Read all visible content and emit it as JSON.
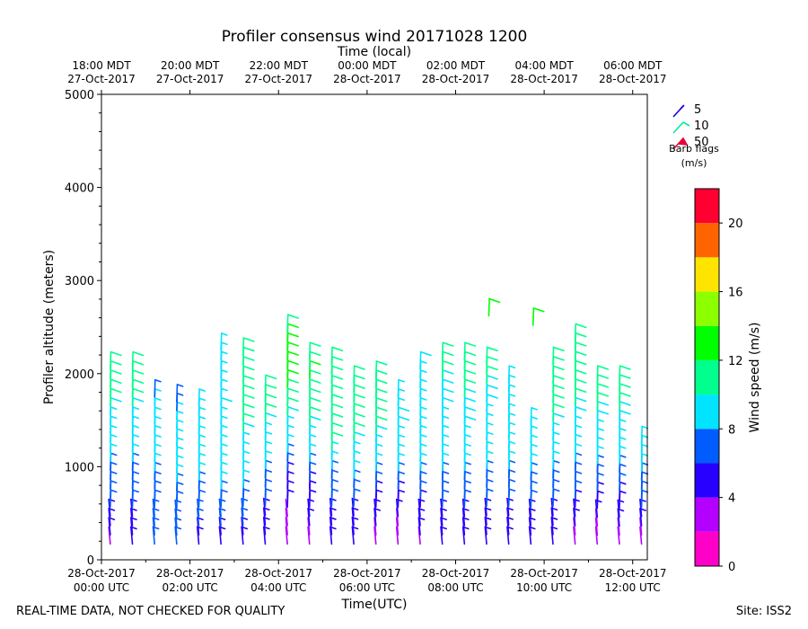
{
  "chart_data": {
    "type": "wind-barb",
    "title": "Profiler consensus wind 20171028 1200",
    "xlabel": "Time(UTC)",
    "x2label": "Time (local)",
    "ylabel": "Profiler altitude (meters)",
    "xlim": [
      0,
      12.33
    ],
    "ylim": [
      0,
      5000
    ],
    "yticks": [
      0,
      1000,
      2000,
      3000,
      4000,
      5000
    ],
    "xticks_utc": [
      {
        "hour": 0,
        "line1": "28-Oct-2017",
        "line2": "00:00 UTC"
      },
      {
        "hour": 2,
        "line1": "28-Oct-2017",
        "line2": "02:00 UTC"
      },
      {
        "hour": 4,
        "line1": "28-Oct-2017",
        "line2": "04:00 UTC"
      },
      {
        "hour": 6,
        "line1": "28-Oct-2017",
        "line2": "06:00 UTC"
      },
      {
        "hour": 8,
        "line1": "28-Oct-2017",
        "line2": "08:00 UTC"
      },
      {
        "hour": 10,
        "line1": "28-Oct-2017",
        "line2": "10:00 UTC"
      },
      {
        "hour": 12,
        "line1": "28-Oct-2017",
        "line2": "12:00 UTC"
      }
    ],
    "xticks_local": [
      {
        "hour": 0,
        "line1": "18:00 MDT",
        "line2": "27-Oct-2017"
      },
      {
        "hour": 2,
        "line1": "20:00 MDT",
        "line2": "27-Oct-2017"
      },
      {
        "hour": 4,
        "line1": "22:00 MDT",
        "line2": "27-Oct-2017"
      },
      {
        "hour": 6,
        "line1": "00:00 MDT",
        "line2": "28-Oct-2017"
      },
      {
        "hour": 8,
        "line1": "02:00 MDT",
        "line2": "28-Oct-2017"
      },
      {
        "hour": 10,
        "line1": "04:00 MDT",
        "line2": "28-Oct-2017"
      },
      {
        "hour": 12,
        "line1": "06:00 MDT",
        "line2": "28-Oct-2017"
      }
    ],
    "barb_flags": {
      "title": "Barb flags",
      "units": "(m/s)",
      "entries": [
        {
          "label": "5",
          "color": "#1a00e6"
        },
        {
          "label": "10",
          "color": "#00e8a0"
        },
        {
          "label": "50",
          "color": "#e8003a"
        }
      ]
    },
    "colorbar": {
      "label": "Wind speed (m/s)",
      "range": [
        0,
        22
      ],
      "ticks": [
        0,
        4,
        8,
        12,
        16,
        20
      ],
      "bins": [
        {
          "from": 0,
          "to": 2,
          "color": "#ff00c8"
        },
        {
          "from": 2,
          "to": 4,
          "color": "#b400ff"
        },
        {
          "from": 4,
          "to": 6,
          "color": "#2800ff"
        },
        {
          "from": 6,
          "to": 8,
          "color": "#005cff"
        },
        {
          "from": 8,
          "to": 10,
          "color": "#00e4ff"
        },
        {
          "from": 10,
          "to": 12,
          "color": "#00ff8c"
        },
        {
          "from": 12,
          "to": 14,
          "color": "#00ff00"
        },
        {
          "from": 14,
          "to": 16,
          "color": "#8cff00"
        },
        {
          "from": 16,
          "to": 18,
          "color": "#ffe400"
        },
        {
          "from": 18,
          "to": 20,
          "color": "#ff6400"
        },
        {
          "from": 20,
          "to": 22,
          "color": "#ff0030"
        }
      ]
    },
    "profiles": [
      {
        "hour": 0.2,
        "top": 2050,
        "speeds": [
          3.5,
          4.5,
          5,
          5.5,
          6,
          6,
          6.5,
          7,
          7,
          8,
          8,
          8.5,
          9,
          9,
          9.5,
          10,
          10,
          10.5,
          10.5,
          10
        ]
      },
      {
        "hour": 0.7,
        "top": 2050,
        "speeds": [
          4,
          4.5,
          5,
          5.5,
          6,
          6.5,
          7,
          7,
          7.5,
          8,
          8,
          8.5,
          9,
          9,
          9.5,
          10,
          10,
          10,
          10.5,
          10
        ]
      },
      {
        "hour": 1.2,
        "top": 1750,
        "speeds": [
          6,
          6,
          6.5,
          7,
          7,
          7,
          7.5,
          7.5,
          8,
          8,
          8,
          8.5,
          8.5,
          8.5,
          8,
          8,
          7.5
        ]
      },
      {
        "hour": 1.7,
        "top": 1700,
        "speeds": [
          6,
          6.5,
          7,
          7,
          7,
          7.5,
          7.5,
          8,
          8,
          8.5,
          8.5,
          8.5,
          8.5,
          8,
          8,
          7.5,
          7.5
        ]
      },
      {
        "hour": 2.2,
        "top": 1650,
        "speeds": [
          5,
          5.5,
          6,
          6.5,
          7,
          7,
          7.5,
          8,
          8,
          8.5,
          8.5,
          9,
          9,
          9,
          8.5,
          8.5
        ]
      },
      {
        "hour": 2.7,
        "top": 2250,
        "speeds": [
          5,
          5.5,
          6,
          6.5,
          7,
          7.5,
          8,
          8,
          8.5,
          8.5,
          9,
          9,
          9,
          9,
          9.5,
          9,
          9,
          8.5,
          8.5,
          8,
          8.5,
          8
        ]
      },
      {
        "hour": 3.2,
        "top": 2200,
        "speeds": [
          5,
          5.5,
          6,
          6.5,
          7,
          7.5,
          8,
          8.5,
          8.5,
          9,
          9,
          9.5,
          10,
          10,
          10.5,
          10.5,
          11,
          11,
          11.5,
          11,
          11
        ]
      },
      {
        "hour": 3.7,
        "top": 1800,
        "speeds": [
          4,
          4.5,
          5,
          5.5,
          6,
          6.5,
          7,
          7.5,
          8,
          8.5,
          9,
          9,
          9.5,
          10,
          10.5,
          11,
          11
        ]
      },
      {
        "hour": 4.2,
        "top": 2450,
        "speeds": [
          3,
          3,
          3.5,
          3.5,
          4,
          4,
          4.5,
          5,
          6,
          7,
          8,
          8.5,
          9,
          9.5,
          10,
          11,
          11.5,
          12,
          12.5,
          13,
          13,
          12.5,
          12,
          11.5
        ]
      },
      {
        "hour": 4.7,
        "top": 2150,
        "speeds": [
          3,
          3.5,
          4,
          4.5,
          5,
          5,
          5.5,
          6,
          7,
          8,
          8.5,
          9,
          9.5,
          10,
          10,
          10.5,
          11,
          11.5,
          12,
          11.5,
          11
        ]
      },
      {
        "hour": 5.2,
        "top": 2100,
        "speeds": [
          4,
          4.5,
          5,
          5.5,
          6,
          6.5,
          7,
          7.5,
          8,
          9,
          10,
          10.5,
          11,
          11,
          11.5,
          11,
          11,
          10.5,
          10,
          10
        ]
      },
      {
        "hour": 5.7,
        "top": 1900,
        "speeds": [
          4,
          4.5,
          5,
          5.5,
          6,
          6.5,
          7,
          8,
          8.5,
          9,
          9.5,
          10,
          10,
          10.5,
          10.5,
          10.5,
          10,
          10
        ]
      },
      {
        "hour": 6.2,
        "top": 1950,
        "speeds": [
          3,
          3.5,
          4,
          4.5,
          5,
          5.5,
          6.5,
          7,
          8,
          8.5,
          9,
          9.5,
          10,
          10.5,
          11,
          11,
          11,
          10.5,
          10.5
        ]
      },
      {
        "hour": 6.7,
        "top": 1750,
        "speeds": [
          3,
          3,
          3.5,
          4,
          4.5,
          5,
          6,
          7,
          8,
          8.5,
          9,
          9,
          9.5,
          9.5,
          9,
          9,
          9
        ]
      },
      {
        "hour": 7.2,
        "top": 2050,
        "speeds": [
          3.5,
          4,
          4.5,
          5,
          5.5,
          6,
          7,
          7.5,
          8,
          8.5,
          8.5,
          9,
          9,
          9,
          9,
          9,
          9,
          9,
          9,
          9.5
        ]
      },
      {
        "hour": 7.7,
        "top": 2150,
        "speeds": [
          4,
          4.5,
          5,
          5.5,
          6,
          6.5,
          7,
          7.5,
          8,
          8.5,
          8.5,
          9,
          9,
          9,
          9.5,
          9.5,
          9.5,
          9.5,
          10,
          10,
          10
        ]
      },
      {
        "hour": 8.2,
        "top": 2150,
        "speeds": [
          4,
          4.5,
          5,
          5.5,
          6,
          6.5,
          7,
          7.5,
          8,
          8.5,
          9,
          9,
          9.5,
          9.5,
          9.5,
          9.5,
          10,
          10,
          10,
          10,
          10
        ]
      },
      {
        "hour": 8.7,
        "top": 2100,
        "speeds": [
          4,
          4.5,
          5,
          5.5,
          6,
          6.5,
          7,
          7.5,
          8,
          8.5,
          9,
          9,
          9,
          9,
          9.5,
          9.5,
          9.5,
          10,
          10,
          10
        ]
      },
      {
        "hour": 9.2,
        "top": 1900,
        "speeds": [
          4,
          4.5,
          5,
          5.5,
          6,
          6.5,
          7,
          7.5,
          8,
          8.5,
          8.5,
          9,
          9,
          9,
          9,
          9,
          9,
          9
        ]
      },
      {
        "hour": 9.7,
        "top": 1450,
        "speeds": [
          4,
          4.5,
          5,
          5.5,
          6,
          6.5,
          7,
          7.5,
          8,
          8.5,
          8.5,
          9,
          9,
          9
        ]
      },
      {
        "hour": 10.2,
        "top": 2100,
        "speeds": [
          4,
          4.5,
          5,
          5.5,
          6,
          6.5,
          7,
          7.5,
          8,
          8.5,
          9,
          9,
          9.5,
          10,
          10,
          10.5,
          10.5,
          10.5,
          10.5,
          11
        ]
      },
      {
        "hour": 10.7,
        "top": 2350,
        "speeds": [
          3,
          3.5,
          4,
          4.5,
          5,
          6,
          6.5,
          7,
          7.5,
          8,
          8.5,
          9,
          9,
          9.5,
          9.5,
          10,
          10,
          10.5,
          10.5,
          11,
          11,
          11,
          11
        ]
      },
      {
        "hour": 11.2,
        "top": 1900,
        "speeds": [
          2.5,
          3,
          3.5,
          4,
          4.5,
          5.5,
          6.5,
          7,
          7.5,
          8,
          8.5,
          9,
          9,
          9.5,
          9.5,
          10,
          10,
          10,
          10
        ]
      },
      {
        "hour": 11.7,
        "top": 1900,
        "speeds": [
          3,
          3.5,
          4,
          4.5,
          5,
          5.5,
          6,
          7,
          7.5,
          8,
          8.5,
          9,
          9,
          9.5,
          9.5,
          10,
          10,
          10,
          10
        ]
      },
      {
        "hour": 12.2,
        "top": 1250,
        "speeds": [
          3,
          3.5,
          4,
          5,
          6,
          6.5,
          7,
          7.5,
          8,
          8,
          8,
          8
        ]
      }
    ],
    "isolated_barbs": [
      {
        "hour": 8.75,
        "height": 2620,
        "speed": 13
      },
      {
        "hour": 9.75,
        "height": 2520,
        "speed": 13
      }
    ]
  },
  "footer": {
    "left": "REAL-TIME DATA, NOT CHECKED FOR QUALITY",
    "right": "Site: ISS2"
  }
}
